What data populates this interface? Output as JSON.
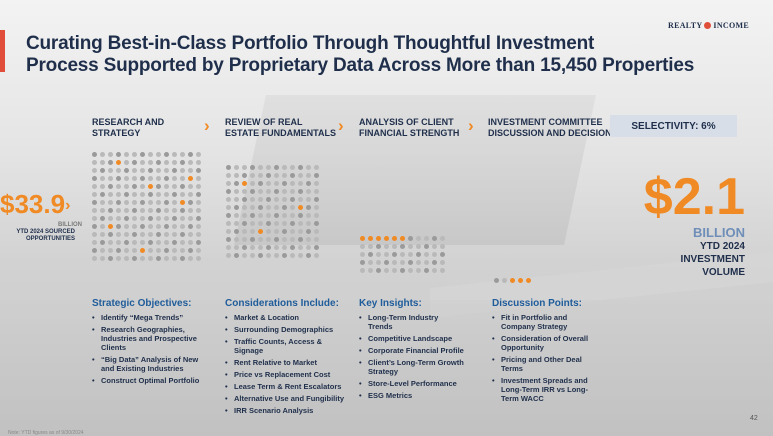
{
  "header": {
    "title_line1": "Curating Best-in-Class Portfolio Through Thoughtful Investment",
    "title_line2": "Process Supported by Proprietary Data Across More than 15,450 Properties",
    "logo_left": "REALTY",
    "logo_right": "INCOME"
  },
  "steps": [
    {
      "line1": "RESEARCH AND",
      "line2": "STRATEGY"
    },
    {
      "line1": "REVIEW OF REAL",
      "line2": "ESTATE FUNDAMENTALS"
    },
    {
      "line1": "ANALYSIS OF CLIENT",
      "line2": "FINANCIAL STRENGTH"
    },
    {
      "line1": "INVESTMENT COMMITTEE",
      "line2": "DISCUSSION AND DECISION"
    }
  ],
  "selectivity": "SELECTIVITY: 6%",
  "sourced": {
    "amount": "$33.9",
    "unit": "BILLION",
    "label_line1": "YTD 2024 SOURCED",
    "label_line2": "OPPORTUNITIES"
  },
  "invested": {
    "amount": "$2.1",
    "unit": "BILLION",
    "label_line1": "YTD 2024",
    "label_line2": "INVESTMENT",
    "label_line3": "VOLUME"
  },
  "columns": [
    {
      "heading": "Strategic Objectives:",
      "items": [
        "Identify “Mega Trends”",
        "Research Geographies, Industries and Prospective Clients",
        "“Big Data” Analysis of New and Existing Industries",
        "Construct Optimal Portfolio"
      ]
    },
    {
      "heading": "Considerations Include:",
      "items": [
        "Market & Location",
        "Surrounding Demographics",
        "Traffic Counts, Access & Signage",
        "Rent Relative to Market",
        "Price vs Replacement Cost",
        "Lease Term & Rent Escalators",
        "Alternative Use and Fungibility",
        "IRR Scenario Analysis"
      ]
    },
    {
      "heading": "Key Insights:",
      "items": [
        "Long-Term Industry Trends",
        "Competitive Landscape",
        "Corporate Financial Profile",
        "Client’s Long-Term Growth Strategy",
        "Store-Level Performance",
        "ESG Metrics"
      ]
    },
    {
      "heading": "Discussion Points:",
      "items": [
        "Fit in Portfolio and Company Strategy",
        "Consideration of Overall Opportunity",
        "Pricing and Other Deal Terms",
        "Investment Spreads and Long-Term IRR vs Long-Term WACC"
      ]
    }
  ],
  "page_number": "42",
  "footnote": "Note: YTD figures as of 9/30/2024",
  "colors": {
    "navy": "#1f2f4b",
    "orange": "#f08a24",
    "red": "#e04e39",
    "blue_heading": "#1f5c9a"
  }
}
